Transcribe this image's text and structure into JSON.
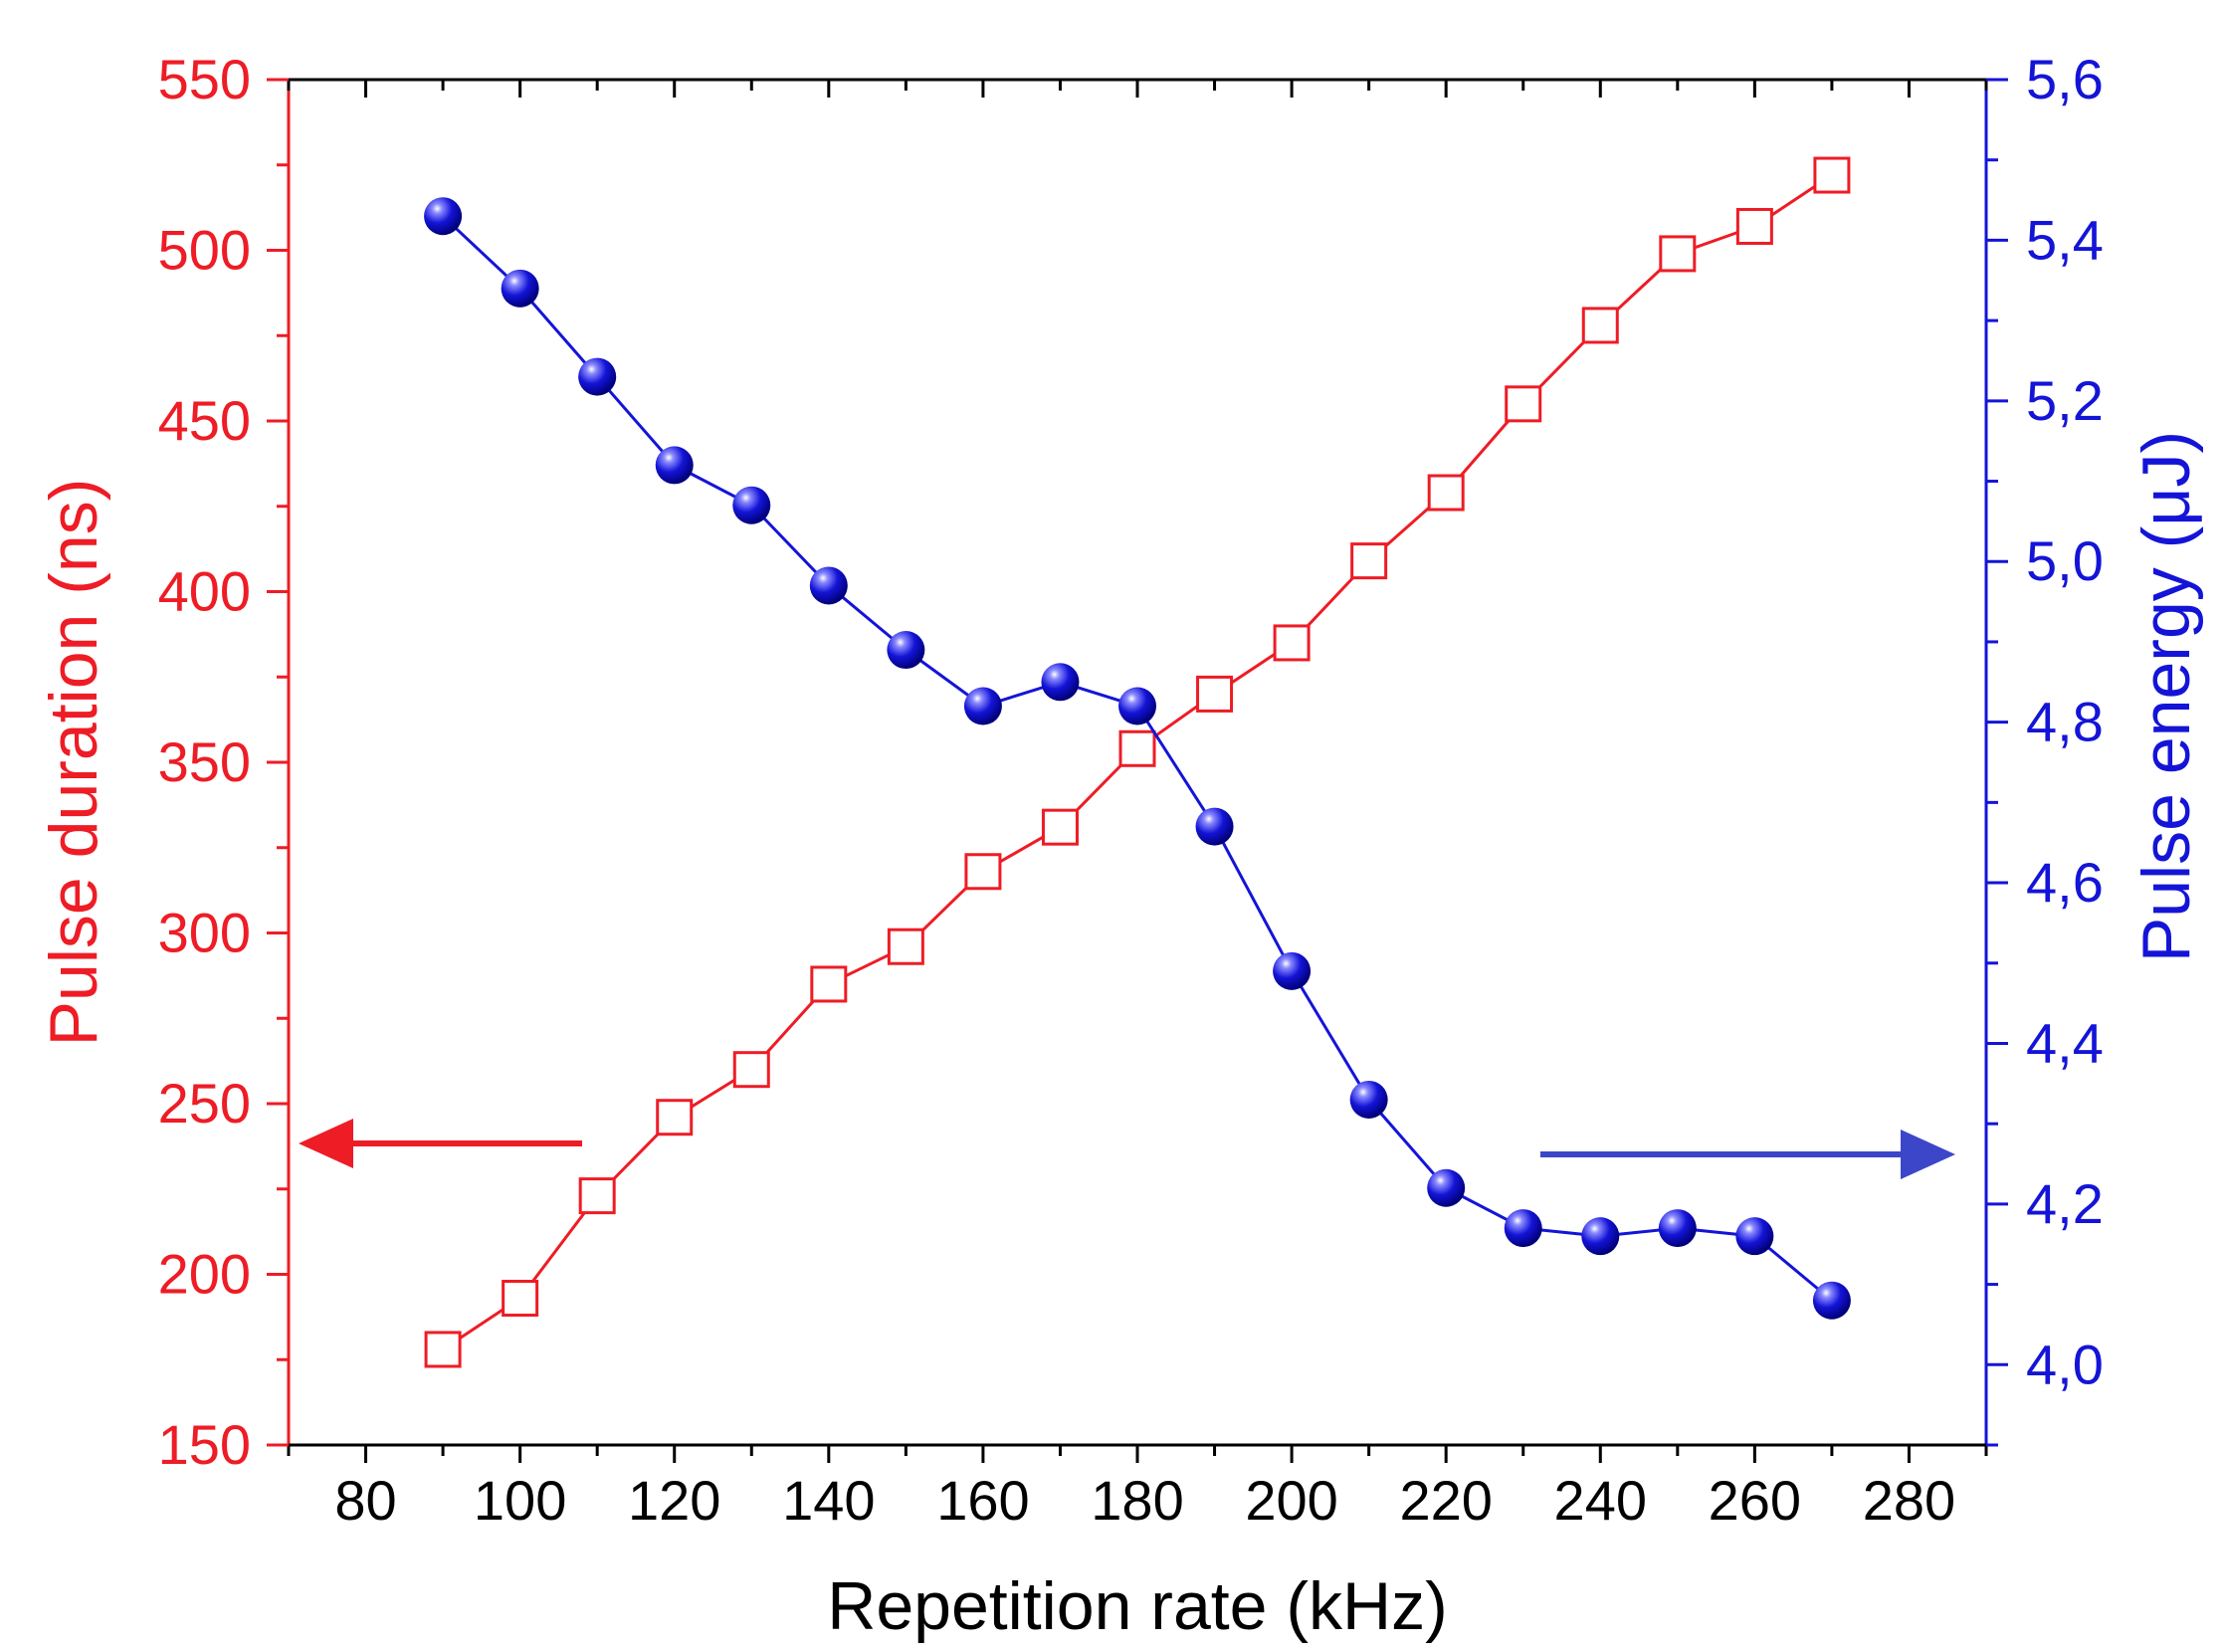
{
  "chart_data": {
    "type": "line",
    "title": "",
    "xlabel": "Repetition rate (kHz)",
    "ylabel_left": "Pulse duration (ns)",
    "ylabel_right": "Pulse energy (μJ)",
    "xlim": [
      70,
      290
    ],
    "ylim_left": [
      150,
      550
    ],
    "ylim_right": [
      3.9,
      5.6
    ],
    "x_ticks": [
      80,
      100,
      120,
      140,
      160,
      180,
      200,
      220,
      240,
      260,
      280
    ],
    "y_left_ticks": [
      150,
      200,
      250,
      300,
      350,
      400,
      450,
      500,
      550
    ],
    "y_right_ticks": [
      "4,0",
      "4,2",
      "4,4",
      "4,6",
      "4,8",
      "5,0",
      "5,2",
      "5,4",
      "5,6"
    ],
    "y_right_tick_values": [
      4.0,
      4.2,
      4.4,
      4.6,
      4.8,
      5.0,
      5.2,
      5.4,
      5.6
    ],
    "series": [
      {
        "name": "Pulse duration",
        "axis": "left",
        "color": "#ee1c25",
        "marker": "open-square",
        "x": [
          90,
          100,
          110,
          120,
          130,
          140,
          150,
          160,
          170,
          180,
          190,
          200,
          210,
          220,
          230,
          240,
          250,
          260,
          270
        ],
        "values": [
          178,
          193,
          223,
          246,
          260,
          285,
          296,
          318,
          331,
          354,
          370,
          385,
          409,
          429,
          455,
          478,
          499,
          507,
          522
        ]
      },
      {
        "name": "Pulse energy",
        "axis": "right",
        "color": "#1414d8",
        "marker": "filled-sphere",
        "x": [
          90,
          100,
          110,
          120,
          130,
          140,
          150,
          160,
          170,
          180,
          190,
          200,
          210,
          220,
          230,
          240,
          250,
          260,
          270
        ],
        "values": [
          5.43,
          5.34,
          5.23,
          5.12,
          5.07,
          4.97,
          4.89,
          4.82,
          4.85,
          4.82,
          4.67,
          4.49,
          4.33,
          4.22,
          4.17,
          4.16,
          4.17,
          4.16,
          4.08
        ]
      }
    ],
    "annotations": [
      {
        "type": "arrow",
        "direction": "left",
        "color": "#ee1c25",
        "meaning": "Pulse duration reads on left axis"
      },
      {
        "type": "arrow",
        "direction": "right",
        "color": "#3c46c8",
        "meaning": "Pulse energy reads on right axis"
      }
    ],
    "grid": false,
    "legend": "none"
  }
}
